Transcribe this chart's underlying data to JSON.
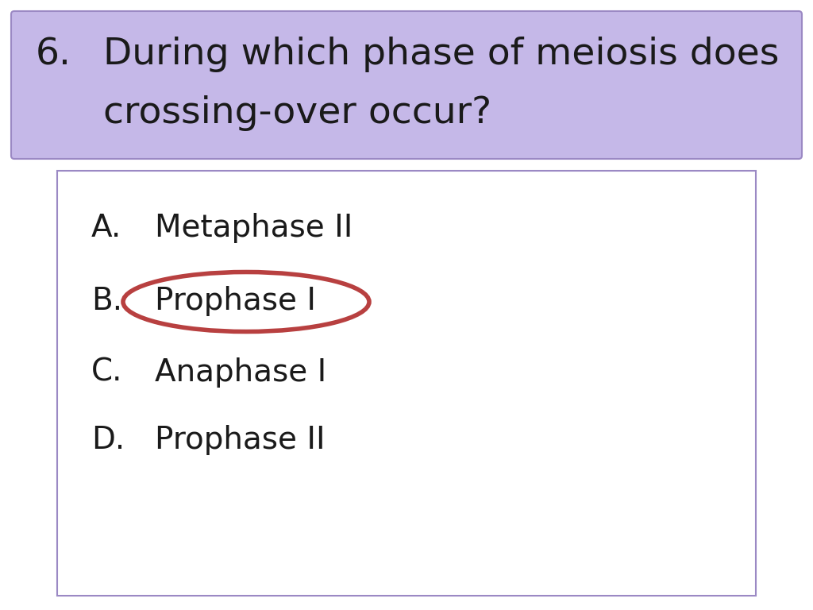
{
  "title_number": "6.",
  "title_text_line1": "During which phase of meiosis does",
  "title_text_line2": "crossing-over occur?",
  "title_bg_color": "#c5b8e8",
  "title_border_color": "#9b89c4",
  "answer_box_border_color": "#9b89c4",
  "background_color": "#ffffff",
  "options": [
    {
      "label": "A.",
      "text": "Metaphase II"
    },
    {
      "label": "B.",
      "text": "Prophase I"
    },
    {
      "label": "C.",
      "text": "Anaphase I"
    },
    {
      "label": "D.",
      "text": "Prophase II"
    }
  ],
  "circle_option_index": 1,
  "circle_color": "#b84040",
  "text_color": "#1a1a1a",
  "title_fontsize": 34,
  "option_fontsize": 28
}
